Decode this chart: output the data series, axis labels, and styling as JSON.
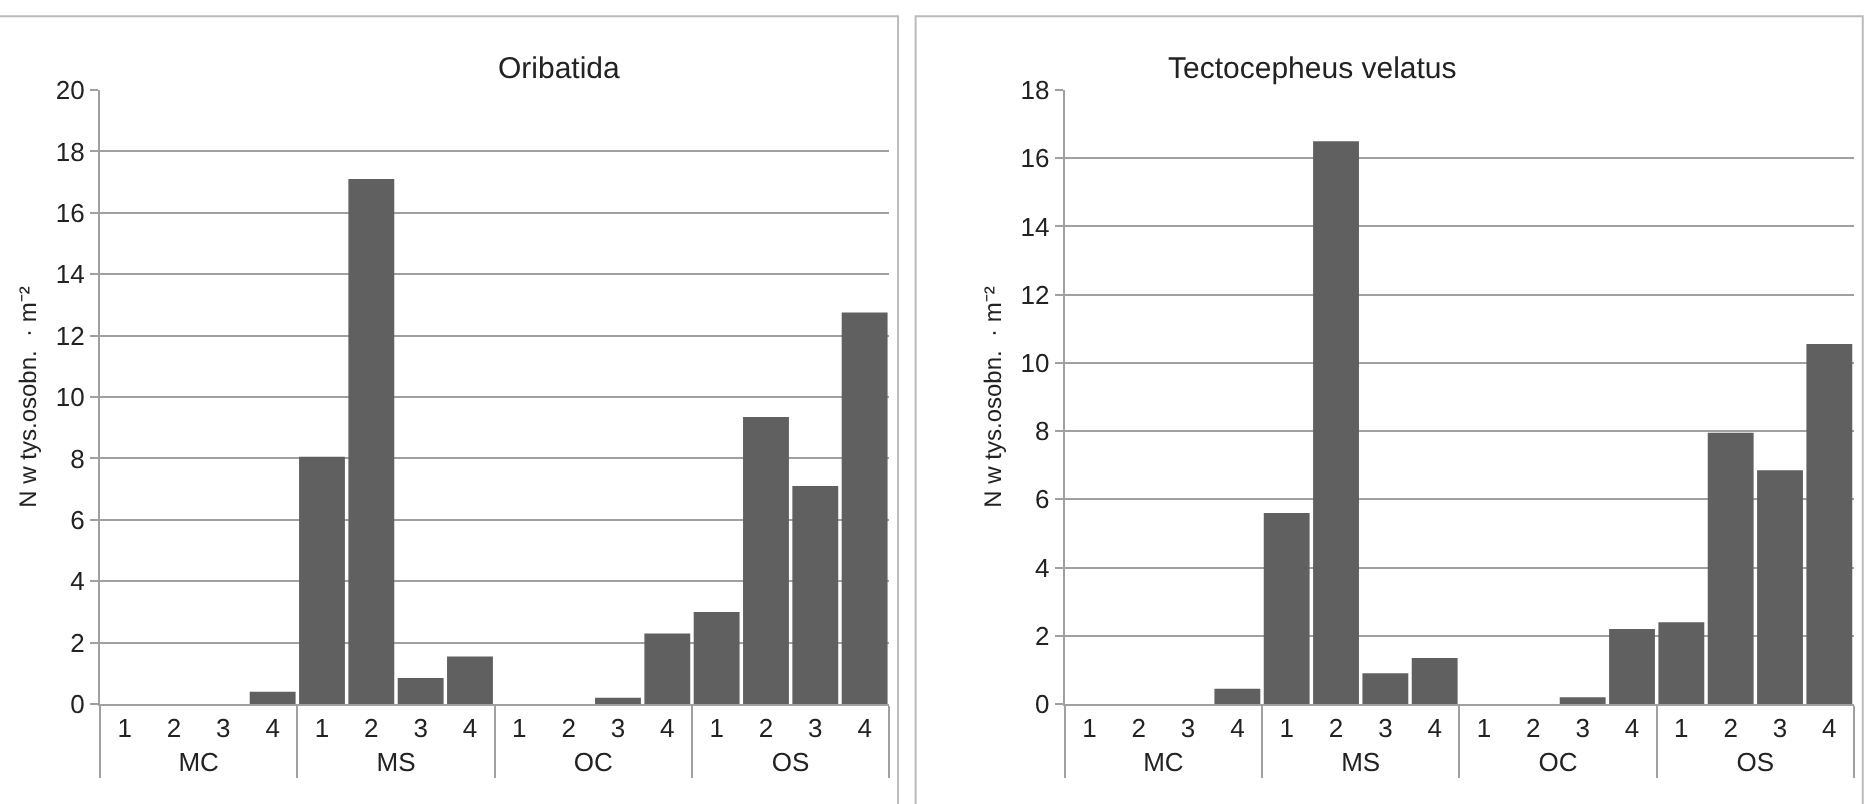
{
  "chart_data": [
    {
      "type": "bar",
      "title": "Oribatida",
      "ylabel": "N w tys.osobn.  · m⁻²",
      "categories": [
        "1",
        "2",
        "3",
        "4",
        "1",
        "2",
        "3",
        "4",
        "1",
        "2",
        "3",
        "4",
        "1",
        "2",
        "3",
        "4"
      ],
      "annotations": [
        "MC",
        "MS",
        "OC",
        "OS"
      ],
      "values": [
        0,
        0,
        0,
        0.4,
        8.05,
        17.1,
        0.85,
        1.55,
        0,
        0,
        0.2,
        2.3,
        3.0,
        9.35,
        7.1,
        12.75
      ],
      "color": "#606060",
      "ylim": [
        0,
        20
      ],
      "yticks": [
        0,
        2,
        4,
        6,
        8,
        10,
        12,
        14,
        16,
        18,
        20
      ],
      "grid": "y"
    },
    {
      "type": "bar",
      "title": "Tectocepheus velatus",
      "ylabel": "N w tys.osobn.  · m⁻²",
      "categories": [
        "1",
        "2",
        "3",
        "4",
        "1",
        "2",
        "3",
        "4",
        "1",
        "2",
        "3",
        "4",
        "1",
        "2",
        "3",
        "4"
      ],
      "annotations": [
        "MC",
        "MS",
        "OC",
        "OS"
      ],
      "values": [
        0,
        0,
        0,
        0.45,
        5.6,
        16.5,
        0.9,
        1.35,
        0,
        0,
        0.2,
        2.2,
        2.4,
        7.95,
        6.85,
        10.55
      ],
      "color": "#606060",
      "ylim": [
        0,
        18
      ],
      "yticks": [
        0,
        2,
        4,
        6,
        8,
        10,
        12,
        14,
        16,
        18
      ],
      "grid": "y"
    }
  ]
}
